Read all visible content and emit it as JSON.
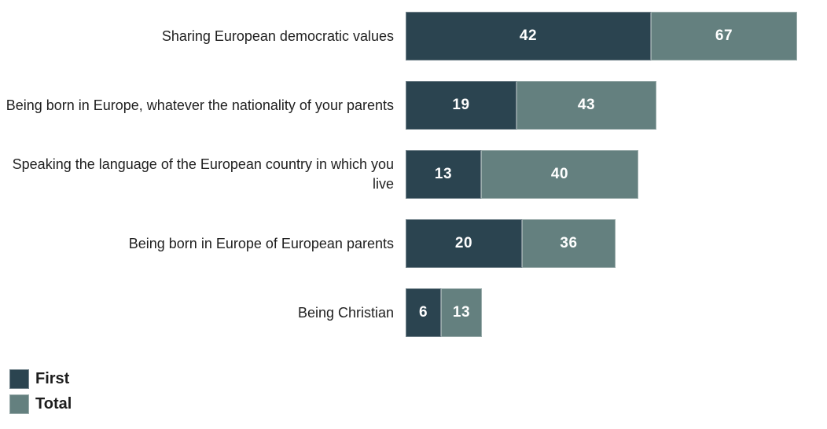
{
  "chart_data": {
    "type": "bar",
    "orientation": "horizontal",
    "stacking": "total-segment-drawn-as-increment-beyond-first",
    "title": "",
    "xlabel": "",
    "ylabel": "",
    "xlim": [
      0,
      70
    ],
    "grid": false,
    "axes_visible": false,
    "value_labels": "inside-segments",
    "categories": [
      "Sharing European democratic values",
      "Being born in Europe, whatever the nationality of your parents",
      "Speaking the language of the European country in which you live",
      "Being born in Europe of European parents",
      "Being Christian"
    ],
    "series": [
      {
        "name": "First",
        "color": "#2b4450",
        "values": [
          42,
          19,
          13,
          20,
          6
        ]
      },
      {
        "name": "Total",
        "color": "#64807f",
        "values": [
          67,
          43,
          40,
          36,
          13
        ]
      }
    ],
    "legend": {
      "position": "bottom-left",
      "entries": [
        {
          "label": "First",
          "color": "#2b4450"
        },
        {
          "label": "Total",
          "color": "#64807f"
        }
      ]
    }
  },
  "colors": {
    "first_segment": "#2b4450",
    "total_segment": "#64807f",
    "value_text": "#ffffff",
    "category_text": "#1f1f1f",
    "legend_text": "#1d1d1d",
    "background": "#ffffff"
  }
}
